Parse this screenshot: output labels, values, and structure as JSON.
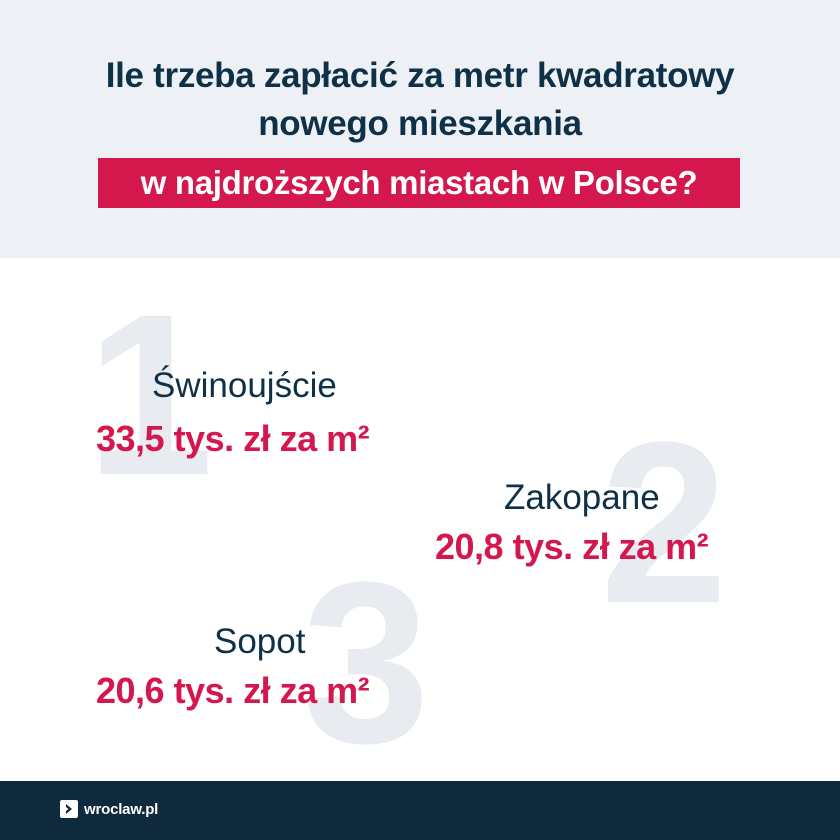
{
  "header": {
    "title_line1": "Ile trzeba zapłacić za metr kwadratowy",
    "title_line2": "nowego mieszkania",
    "highlight": "w najdroższych miastach w Polsce?"
  },
  "rankings": [
    {
      "rank": "1",
      "city": "Świnoujście",
      "price": "33,5 tys. zł za m²"
    },
    {
      "rank": "2",
      "city": "Zakopane",
      "price": "20,8 tys. zł  za m²"
    },
    {
      "rank": "3",
      "city": "Sopot",
      "price": "20,6 tys. zł  za m²"
    }
  ],
  "footer": {
    "logo_text": "wroclaw.pl",
    "logo_icon": "chevron-right-icon"
  },
  "colors": {
    "header_bg": "#edf0f4",
    "navy": "#0f3147",
    "accent_red": "#d4184e",
    "footer_bg": "#0f2a3c"
  }
}
